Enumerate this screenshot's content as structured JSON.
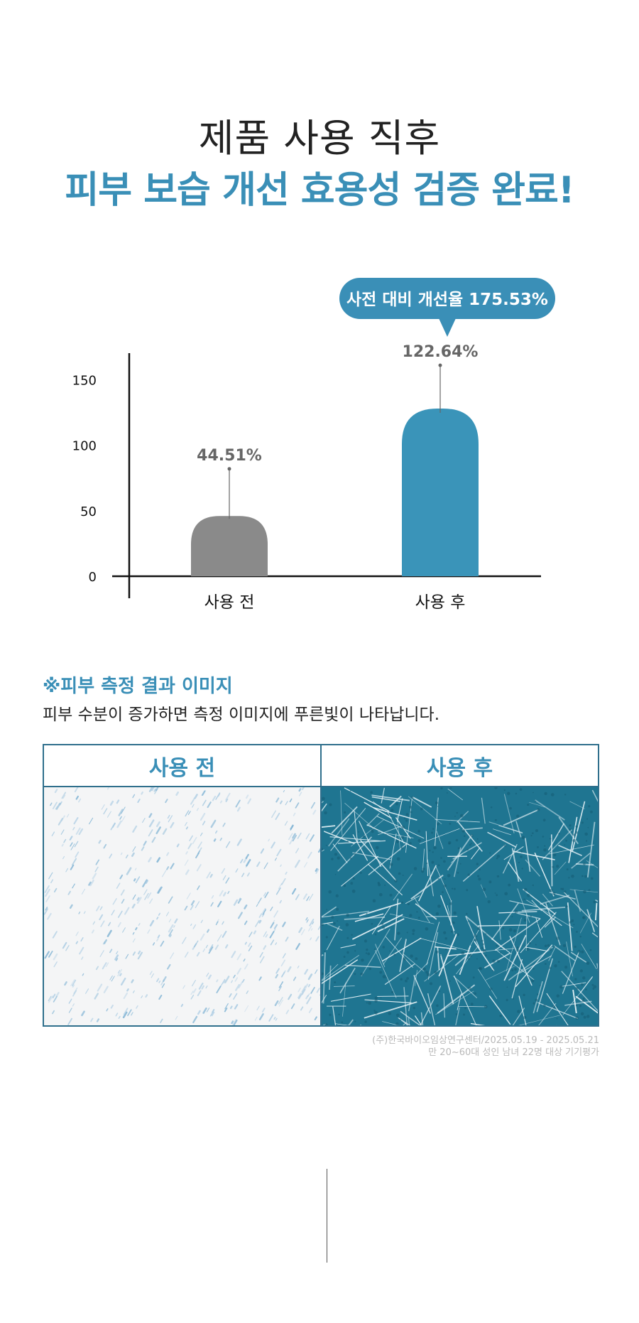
{
  "header": {
    "title_line1": "제품 사용 직후",
    "title_line2": "피부 보습 개선 효용성 검증 완료!"
  },
  "callout": {
    "text": "사전 대비 개선율 175.53%"
  },
  "chart_data": {
    "type": "bar",
    "categories": [
      "사용 전",
      "사용 후"
    ],
    "values": [
      44.51,
      122.64
    ],
    "value_labels": [
      "44.51%",
      "122.64%"
    ],
    "bar_colors": [
      "#8a8a8a",
      "#3a94b9"
    ],
    "y_ticks": [
      0,
      50,
      100,
      150
    ],
    "ylim": [
      0,
      160
    ],
    "title": "",
    "xlabel": "",
    "ylabel": ""
  },
  "section": {
    "title": "※피부 측정 결과 이미지",
    "description": "피부 수분이 증가하면 측정 이미지에 푸른빛이 나타납니다."
  },
  "panels": [
    {
      "label": "사용 전"
    },
    {
      "label": "사용 후"
    }
  ],
  "footnote": {
    "line1": "(주)한국바이오임상연구센터/2025.05.19 - 2025.05.21",
    "line2": "만 20~60대 성인 남녀 22명 대상 기기평가"
  },
  "colors": {
    "accent": "#3a8fb7",
    "before_bar": "#8a8a8a",
    "after_bar": "#3a94b9"
  }
}
